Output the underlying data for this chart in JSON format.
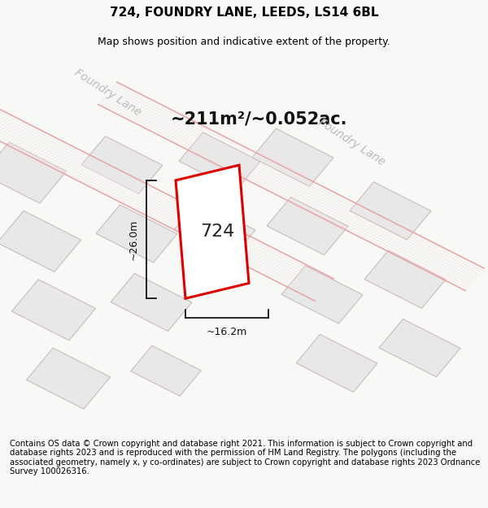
{
  "title_line1": "724, FOUNDRY LANE, LEEDS, LS14 6BL",
  "title_line2": "Map shows position and indicative extent of the property.",
  "area_text": "~211m²/~0.052ac.",
  "label_724": "724",
  "dim_width": "~16.2m",
  "dim_height": "~26.0m",
  "road_label_1": "Foundry Lane",
  "road_label_2": "Foundry Lane",
  "footer_text": "Contains OS data © Crown copyright and database right 2021. This information is subject to Crown copyright and database rights 2023 and is reproduced with the permission of HM Land Registry. The polygons (including the associated geometry, namely x, y co-ordinates) are subject to Crown copyright and database rights 2023 Ordnance Survey 100026316.",
  "bg_color": "#f8f8f6",
  "map_bg": "#f8f8f6",
  "plot_color_fill": "#ffffff",
  "plot_color_edge": "#dd0000",
  "building_fill": "#e8e8e8",
  "building_edge": "#ccbbbb",
  "road_line_color": "#e8a8a8",
  "title_fontsize": 11,
  "subtitle_fontsize": 9,
  "area_fontsize": 15,
  "footer_fontsize": 7.2
}
